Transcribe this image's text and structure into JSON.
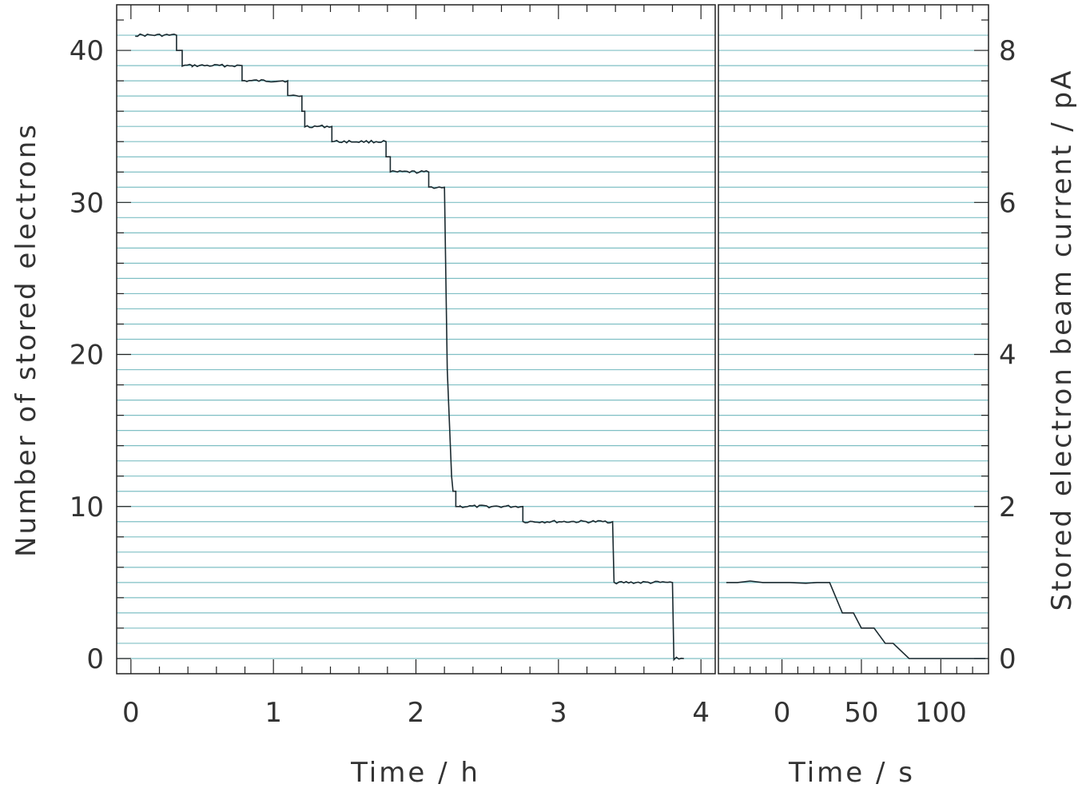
{
  "chart_data": [
    {
      "type": "line",
      "panel": "left",
      "xlabel": "Time   / h",
      "ylabel": "Number of stored electrons",
      "xlim": [
        -0.1,
        4.1
      ],
      "ylim": [
        -1,
        43
      ],
      "xticks": [
        "0",
        "1",
        "2",
        "3",
        "4"
      ],
      "yticks": [
        "0",
        "10",
        "20",
        "30",
        "40"
      ],
      "grid": "horizontal lines at each integer electron count",
      "series": [
        {
          "x": [
            0.03,
            0.32,
            0.32,
            0.36,
            0.36,
            0.43,
            0.43,
            0.78,
            0.78,
            1.1,
            1.1,
            1.2,
            1.2,
            1.22,
            1.22,
            1.41,
            1.41,
            1.79,
            1.79,
            1.82,
            1.82,
            2.09,
            2.09,
            2.2,
            2.22,
            2.25,
            2.26,
            2.28,
            2.28,
            2.31,
            2.31,
            2.75,
            2.75,
            3.38,
            3.39,
            3.8,
            3.81,
            3.88
          ],
          "y": [
            41,
            41,
            40,
            40,
            39,
            39,
            39,
            39,
            38,
            38,
            37,
            37,
            36,
            36,
            35,
            35,
            34,
            34,
            33,
            33,
            32,
            32,
            31,
            31,
            19,
            12,
            11,
            11,
            10,
            10,
            10,
            10,
            9,
            9,
            5,
            5,
            0,
            0
          ]
        }
      ]
    },
    {
      "type": "line",
      "panel": "right",
      "xlabel": "Time   / s",
      "ylabel": "Stored electron beam current   / pA",
      "xlim": [
        -40,
        130
      ],
      "xticks": [
        "0",
        "50",
        "100"
      ],
      "yticks": [
        "0",
        "2",
        "4",
        "6",
        "8"
      ],
      "y_unit_ratio": "1 electron = 0.2 pA",
      "series": [
        {
          "x": [
            -35,
            -28,
            -20,
            -12,
            -5,
            5,
            15,
            22,
            30,
            38,
            45,
            50,
            58,
            65,
            70,
            80,
            128
          ],
          "y": [
            5,
            5,
            5.1,
            5,
            5,
            5,
            4.95,
            5,
            5,
            3,
            3,
            2,
            2,
            1,
            1,
            0,
            0
          ]
        }
      ]
    }
  ]
}
